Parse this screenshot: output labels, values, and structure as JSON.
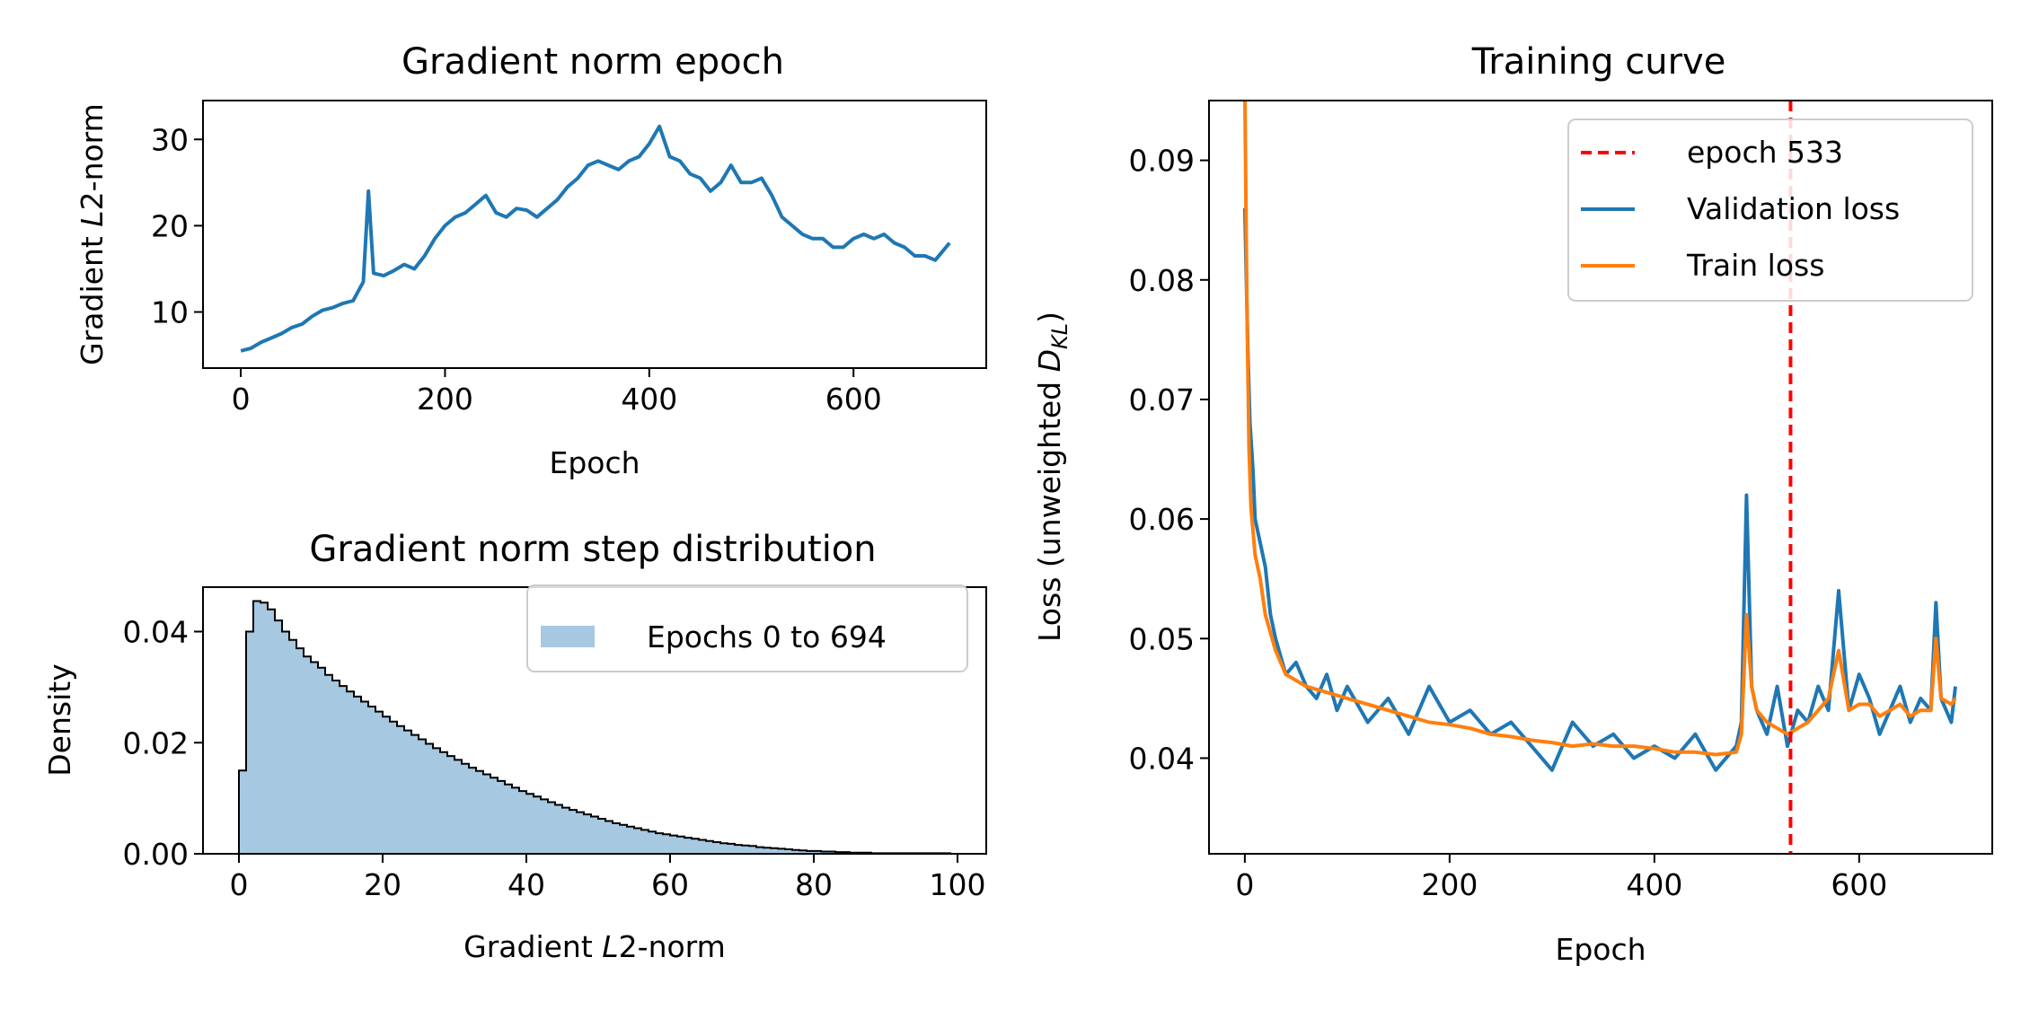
{
  "chart_data": [
    {
      "id": "grad_epoch",
      "type": "line",
      "title": "Gradient norm epoch",
      "xlabel": "Epoch",
      "ylabel": "Gradient L2-norm",
      "xlim": [
        -37,
        730
      ],
      "ylim": [
        3.5,
        34.5
      ],
      "xticks": [
        0,
        200,
        400,
        600
      ],
      "yticks": [
        10,
        20,
        30
      ],
      "grid": false,
      "series": [
        {
          "color": "#1f77b4",
          "x": [
            0,
            10,
            20,
            30,
            40,
            50,
            60,
            70,
            80,
            90,
            100,
            110,
            120,
            125,
            130,
            140,
            150,
            160,
            170,
            180,
            190,
            200,
            210,
            220,
            230,
            240,
            250,
            260,
            270,
            280,
            290,
            300,
            310,
            320,
            330,
            340,
            350,
            360,
            370,
            380,
            390,
            400,
            410,
            420,
            430,
            440,
            450,
            460,
            470,
            480,
            490,
            500,
            510,
            520,
            530,
            540,
            550,
            560,
            570,
            580,
            590,
            600,
            610,
            620,
            630,
            640,
            650,
            660,
            670,
            680,
            694
          ],
          "y": [
            5.5,
            5.8,
            6.5,
            7.0,
            7.5,
            8.2,
            8.6,
            9.5,
            10.2,
            10.5,
            11.0,
            11.3,
            13.5,
            24.0,
            14.5,
            14.2,
            14.8,
            15.5,
            15.0,
            16.5,
            18.5,
            20.0,
            21.0,
            21.5,
            22.5,
            23.5,
            21.5,
            21.0,
            22.0,
            21.8,
            21.0,
            22.0,
            23.0,
            24.5,
            25.5,
            27.0,
            27.5,
            27.0,
            26.5,
            27.5,
            28.0,
            29.5,
            31.5,
            28.0,
            27.5,
            26.0,
            25.5,
            24.0,
            25.0,
            27.0,
            25.0,
            25.0,
            25.5,
            23.5,
            21.0,
            20.0,
            19.0,
            18.5,
            18.5,
            17.5,
            17.5,
            18.5,
            19.0,
            18.5,
            19.0,
            18.0,
            17.5,
            16.5,
            16.5,
            16.0,
            18.0
          ]
        }
      ]
    },
    {
      "id": "grad_hist",
      "type": "histogram",
      "title": "Gradient norm step distribution",
      "xlabel": "Gradient L2-norm",
      "ylabel": "Density",
      "xlim": [
        -5,
        104
      ],
      "ylim": [
        0,
        0.048
      ],
      "xticks": [
        0,
        20,
        40,
        60,
        80,
        100
      ],
      "yticks": [
        "0.00",
        "0.02",
        "0.04"
      ],
      "bin_width": 1,
      "bin_start": 0,
      "densities": [
        0.015,
        0.04,
        0.0455,
        0.0452,
        0.044,
        0.042,
        0.04,
        0.0385,
        0.037,
        0.0355,
        0.0345,
        0.0335,
        0.0322,
        0.0312,
        0.0302,
        0.0292,
        0.0283,
        0.0274,
        0.0265,
        0.0256,
        0.0247,
        0.0238,
        0.023,
        0.0222,
        0.0214,
        0.0206,
        0.0198,
        0.019,
        0.0183,
        0.0176,
        0.0169,
        0.0162,
        0.0155,
        0.0149,
        0.0143,
        0.0137,
        0.0131,
        0.0125,
        0.0119,
        0.0113,
        0.0108,
        0.0103,
        0.0098,
        0.0093,
        0.0088,
        0.0083,
        0.0079,
        0.0075,
        0.0071,
        0.0067,
        0.0063,
        0.0059,
        0.0055,
        0.0052,
        0.0049,
        0.0046,
        0.0043,
        0.004,
        0.0037,
        0.0035,
        0.0033,
        0.0031,
        0.0029,
        0.0027,
        0.0025,
        0.0023,
        0.0021,
        0.0019,
        0.0018,
        0.0016,
        0.0015,
        0.0014,
        0.0012,
        0.0011,
        0.001,
        0.0009,
        0.0008,
        0.0007,
        0.0006,
        0.0005,
        0.0005,
        0.0004,
        0.0004,
        0.0003,
        0.0003,
        0.0002,
        0.0002,
        0.0002,
        0.0001,
        0.0001,
        0.0001,
        0.0001,
        0.0001,
        0.0001,
        0.0001,
        0.0001,
        0.0001,
        0.0001,
        0.0001
      ],
      "fill_color": "#a6c8e0",
      "edge_color": "#000000",
      "legend": {
        "label": "Epochs 0 to 694",
        "placement": "top-right"
      }
    },
    {
      "id": "training_curve",
      "type": "line",
      "title": "Training curve",
      "xlabel": "Epoch",
      "ylabel": "Loss (unweighted D_KL)",
      "xlim": [
        -35,
        730
      ],
      "ylim": [
        0.032,
        0.095
      ],
      "xticks": [
        0,
        200,
        400,
        600
      ],
      "yticks": [
        "0.04",
        "0.05",
        "0.06",
        "0.07",
        "0.08",
        "0.09"
      ],
      "grid": false,
      "vline": {
        "x": 533,
        "label": "epoch 533",
        "color": "#ff0000",
        "style": "dashed"
      },
      "legend": {
        "placement": "top-right"
      },
      "series": [
        {
          "name": "Validation loss",
          "color": "#1f77b4",
          "x": [
            0,
            3,
            5,
            8,
            10,
            15,
            20,
            25,
            30,
            40,
            50,
            60,
            70,
            80,
            90,
            100,
            120,
            140,
            160,
            180,
            200,
            220,
            240,
            260,
            280,
            300,
            320,
            340,
            360,
            380,
            400,
            420,
            440,
            460,
            480,
            485,
            490,
            495,
            500,
            510,
            520,
            530,
            540,
            550,
            560,
            570,
            580,
            590,
            600,
            610,
            620,
            630,
            640,
            650,
            660,
            670,
            675,
            680,
            690,
            694
          ],
          "y": [
            0.086,
            0.074,
            0.068,
            0.064,
            0.06,
            0.058,
            0.056,
            0.052,
            0.05,
            0.047,
            0.048,
            0.046,
            0.045,
            0.047,
            0.044,
            0.046,
            0.043,
            0.045,
            0.042,
            0.046,
            0.043,
            0.044,
            0.042,
            0.043,
            0.041,
            0.039,
            0.043,
            0.041,
            0.042,
            0.04,
            0.041,
            0.04,
            0.042,
            0.039,
            0.041,
            0.043,
            0.062,
            0.046,
            0.044,
            0.042,
            0.046,
            0.041,
            0.044,
            0.043,
            0.046,
            0.044,
            0.054,
            0.044,
            0.047,
            0.045,
            0.042,
            0.044,
            0.046,
            0.043,
            0.045,
            0.044,
            0.053,
            0.045,
            0.043,
            0.046
          ]
        },
        {
          "name": "Train loss",
          "color": "#ff7f0e",
          "x": [
            0,
            2,
            4,
            6,
            8,
            10,
            15,
            20,
            30,
            40,
            50,
            60,
            80,
            100,
            120,
            140,
            160,
            180,
            200,
            220,
            240,
            260,
            280,
            300,
            320,
            340,
            360,
            380,
            400,
            420,
            440,
            460,
            480,
            485,
            490,
            495,
            500,
            510,
            520,
            530,
            540,
            550,
            560,
            570,
            580,
            590,
            600,
            610,
            620,
            630,
            640,
            650,
            660,
            670,
            675,
            680,
            690,
            694
          ],
          "y": [
            0.096,
            0.078,
            0.066,
            0.061,
            0.059,
            0.057,
            0.055,
            0.052,
            0.049,
            0.047,
            0.0465,
            0.046,
            0.0455,
            0.045,
            0.0445,
            0.044,
            0.0435,
            0.043,
            0.0428,
            0.0425,
            0.042,
            0.0418,
            0.0415,
            0.0413,
            0.041,
            0.0412,
            0.041,
            0.041,
            0.0408,
            0.0405,
            0.0405,
            0.0403,
            0.0405,
            0.042,
            0.052,
            0.046,
            0.044,
            0.043,
            0.0425,
            0.042,
            0.0425,
            0.043,
            0.044,
            0.045,
            0.049,
            0.044,
            0.0445,
            0.0445,
            0.0435,
            0.044,
            0.0445,
            0.0435,
            0.044,
            0.044,
            0.05,
            0.045,
            0.0445,
            0.045
          ]
        }
      ]
    }
  ]
}
